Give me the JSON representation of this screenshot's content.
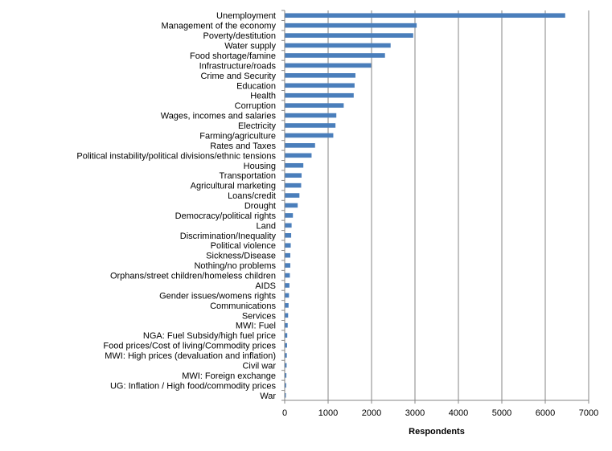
{
  "chart_data": {
    "type": "bar",
    "orientation": "horizontal",
    "title": "",
    "xlabel": "Respondents",
    "ylabel": "",
    "xlim": [
      0,
      7000
    ],
    "xticks": [
      "0",
      "1000",
      "2000",
      "3000",
      "4000",
      "5000",
      "6000",
      "7000"
    ],
    "grid": "vertical major gridlines",
    "legend": "none",
    "bar_color": "#4a7ebb",
    "categories": [
      "Unemployment",
      "Management of the economy",
      "Poverty/destitution",
      "Water supply",
      "Food shortage/famine",
      "Infrastructure/roads",
      "Crime and Security",
      "Education",
      "Health",
      "Corruption",
      "Wages, incomes and salaries",
      "Electricity",
      "Farming/agriculture",
      "Rates and Taxes",
      "Political instability/political divisions/ethnic tensions",
      "Housing",
      "Transportation",
      "Agricultural marketing",
      "Loans/credit",
      "Drought",
      "Democracy/political rights",
      "Land",
      "Discrimination/Inequality",
      "Political violence",
      "Sickness/Disease",
      "Nothing/no problems",
      "Orphans/street children/homeless children",
      "AIDS",
      "Gender issues/womens rights",
      "Communications",
      "Services",
      "MWI: Fuel",
      "NGA: Fuel Subsidy/high fuel price",
      "Food prices/Cost of living/Commodity prices",
      "MWI: High prices (devaluation and inflation)",
      "Civil war",
      "MWI: Foreign exchange",
      "UG: Inflation / High food/commodity prices",
      "War"
    ],
    "values": [
      6450,
      3030,
      2950,
      2430,
      2300,
      1980,
      1620,
      1600,
      1580,
      1350,
      1180,
      1160,
      1110,
      690,
      610,
      420,
      380,
      370,
      330,
      290,
      180,
      150,
      140,
      130,
      120,
      120,
      110,
      100,
      90,
      80,
      70,
      60,
      50,
      45,
      40,
      35,
      30,
      25,
      15
    ]
  }
}
